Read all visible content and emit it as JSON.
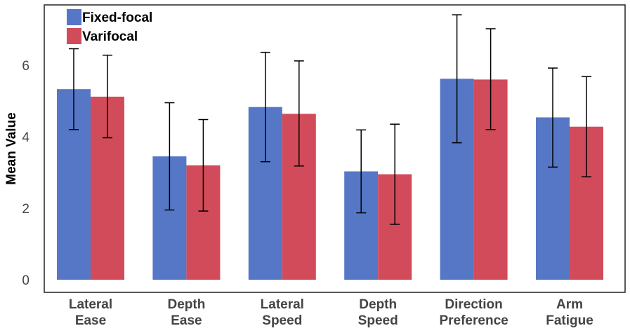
{
  "chart_data": {
    "type": "bar",
    "title": "",
    "xlabel": "",
    "ylabel": "Mean Value",
    "ylim": [
      0,
      7.6
    ],
    "yticks": [
      "0",
      "2",
      "4",
      "6"
    ],
    "categories": [
      [
        "Lateral",
        "Ease"
      ],
      [
        "Depth",
        "Ease"
      ],
      [
        "Lateral",
        "Speed"
      ],
      [
        "Depth",
        "Speed"
      ],
      [
        "Direction",
        "Preference"
      ],
      [
        "Arm",
        "Fatigue"
      ]
    ],
    "series": [
      {
        "name": "Fixed-focal",
        "color": "#5577c6",
        "values": [
          5.33,
          3.45,
          4.83,
          3.03,
          5.62,
          4.54
        ],
        "error_low": [
          4.2,
          1.95,
          3.3,
          1.87,
          3.83,
          3.15
        ],
        "error_high": [
          6.46,
          4.95,
          6.36,
          4.19,
          7.41,
          5.92
        ]
      },
      {
        "name": "Varifocal",
        "color": "#d24b5a",
        "values": [
          5.12,
          3.2,
          4.64,
          2.95,
          5.6,
          4.28
        ],
        "error_low": [
          3.97,
          1.92,
          3.18,
          1.55,
          4.2,
          2.88
        ],
        "error_high": [
          6.28,
          4.48,
          6.12,
          4.35,
          7.02,
          5.68
        ]
      }
    ],
    "legend_position": "top-left",
    "grid": false
  }
}
